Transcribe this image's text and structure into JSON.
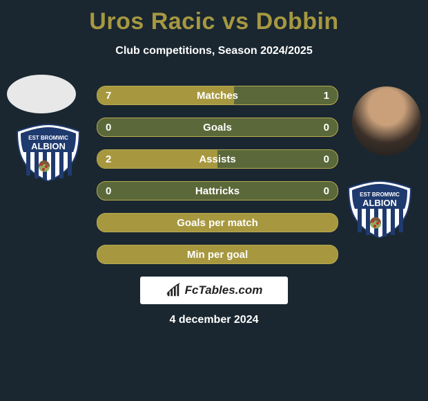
{
  "title_color": "#a69841",
  "title": "Uros Racic vs Dobbin",
  "subtitle": "Club competitions, Season 2024/2025",
  "colors": {
    "bar_track": "#5b683a",
    "bar_fill_left": "#a7983f",
    "bar_fill_right": "#a7983f",
    "bar_border": "#b9aa52"
  },
  "stats": [
    {
      "label": "Matches",
      "left_val": "7",
      "right_val": "1",
      "left_pct": 100,
      "right_pct": 14
    },
    {
      "label": "Goals",
      "left_val": "0",
      "right_val": "0",
      "left_pct": 0,
      "right_pct": 0
    },
    {
      "label": "Assists",
      "left_val": "2",
      "right_val": "0",
      "left_pct": 100,
      "right_pct": 0
    },
    {
      "label": "Hattricks",
      "left_val": "0",
      "right_val": "0",
      "left_pct": 0,
      "right_pct": 0
    },
    {
      "label": "Goals per match",
      "left_val": "",
      "right_val": "",
      "left_pct": 100,
      "right_pct": 100,
      "full": true
    },
    {
      "label": "Min per goal",
      "left_val": "",
      "right_val": "",
      "left_pct": 100,
      "right_pct": 100,
      "full": true
    }
  ],
  "branding": "FcTables.com",
  "date": "4 december 2024",
  "crest_text": "ALBION",
  "crest_subtext": "EST BROMWIC"
}
